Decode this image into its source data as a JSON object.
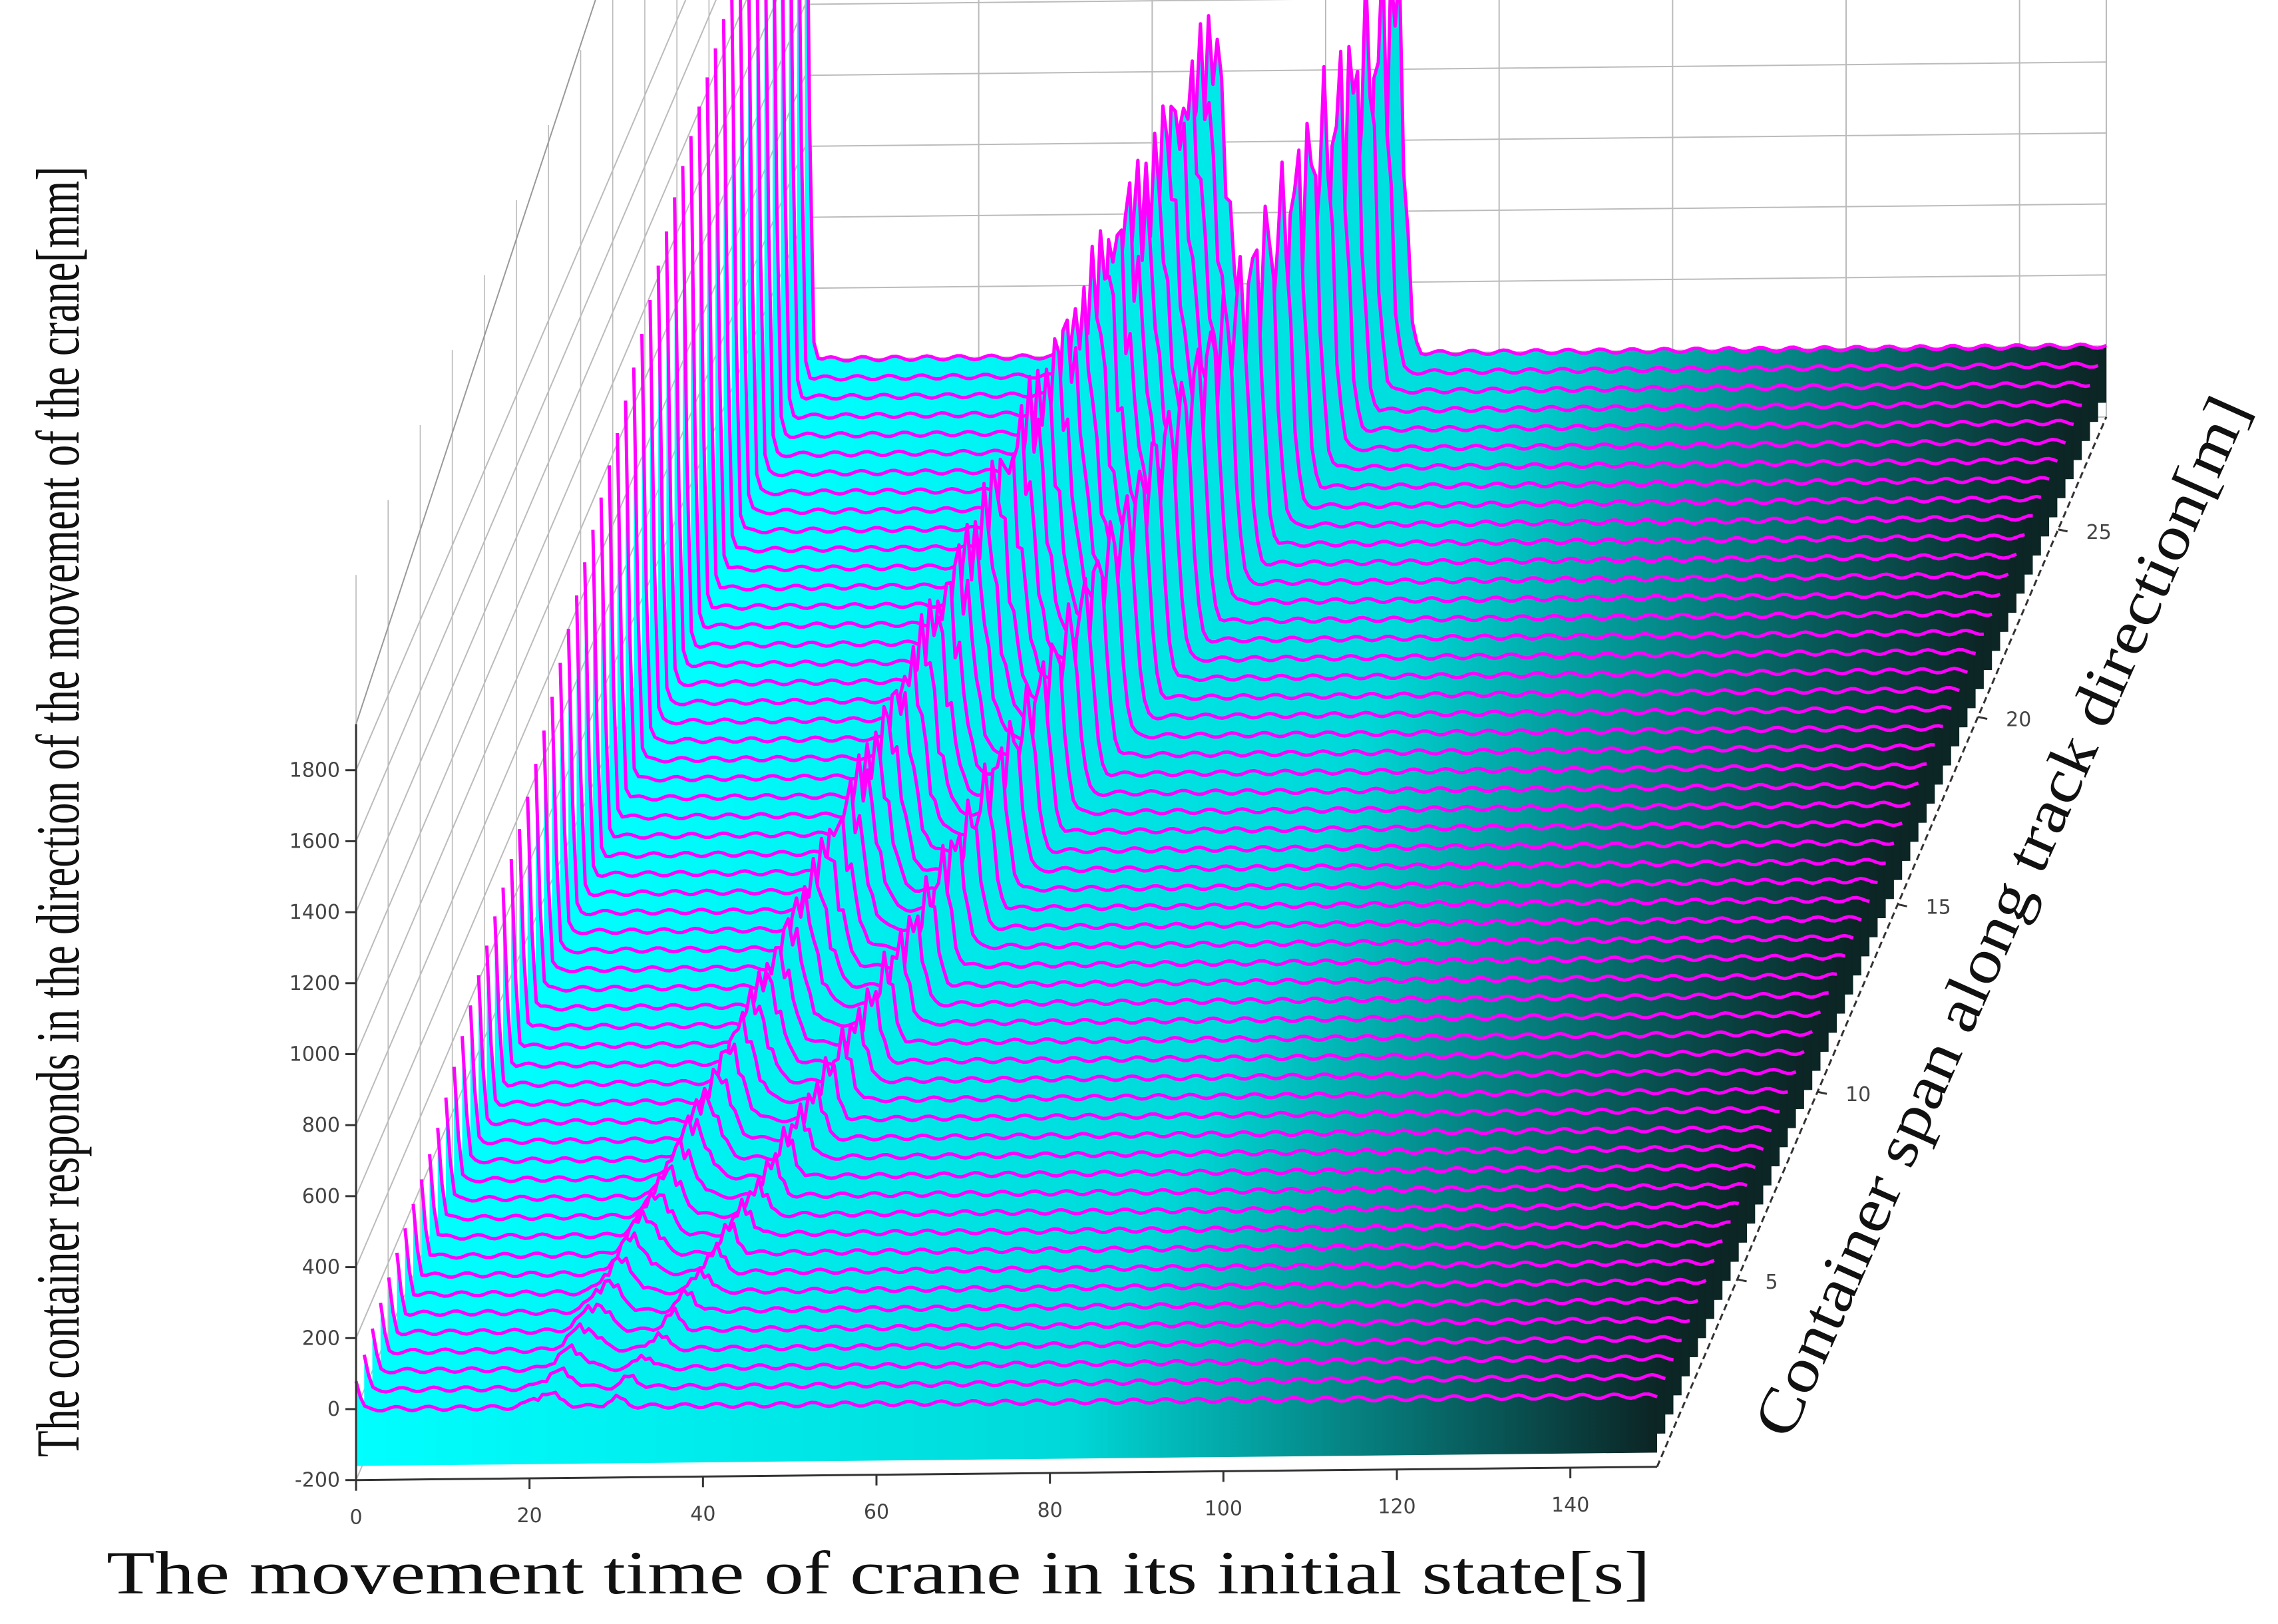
{
  "chart_data": {
    "type": "waterfall-3d-line",
    "x_axis": {
      "label": "The movement time of crane in its initial state[s]",
      "ticks": [
        0,
        20,
        40,
        60,
        80,
        100,
        120,
        140
      ],
      "range": [
        0,
        150
      ]
    },
    "y_axis": {
      "label": "Container span along track direction[m]",
      "ticks": [
        5,
        10,
        15,
        20,
        25
      ],
      "range": [
        0,
        28
      ]
    },
    "z_axis": {
      "label": "The container responds in the direction of the movement of the crane[mm]",
      "ticks": [
        -200,
        0,
        200,
        400,
        600,
        800,
        1000,
        1200,
        1400,
        1600,
        1800
      ],
      "range": [
        -200,
        1900
      ]
    },
    "series_count": 56,
    "peak_response_by_span": [
      {
        "span": 0,
        "peak": 80
      },
      {
        "span": 5,
        "peak": 260
      },
      {
        "span": 10,
        "peak": 560
      },
      {
        "span": 15,
        "peak": 950
      },
      {
        "span": 20,
        "peak": 1350
      },
      {
        "span": 24,
        "peak": 1600
      },
      {
        "span": 28,
        "peak": 1830
      }
    ],
    "colors": {
      "line": "#ff00ff",
      "fill_start": "#00ffff",
      "fill_end": "#102828",
      "grid": "#bbbbbb",
      "axis": "#333333"
    }
  }
}
